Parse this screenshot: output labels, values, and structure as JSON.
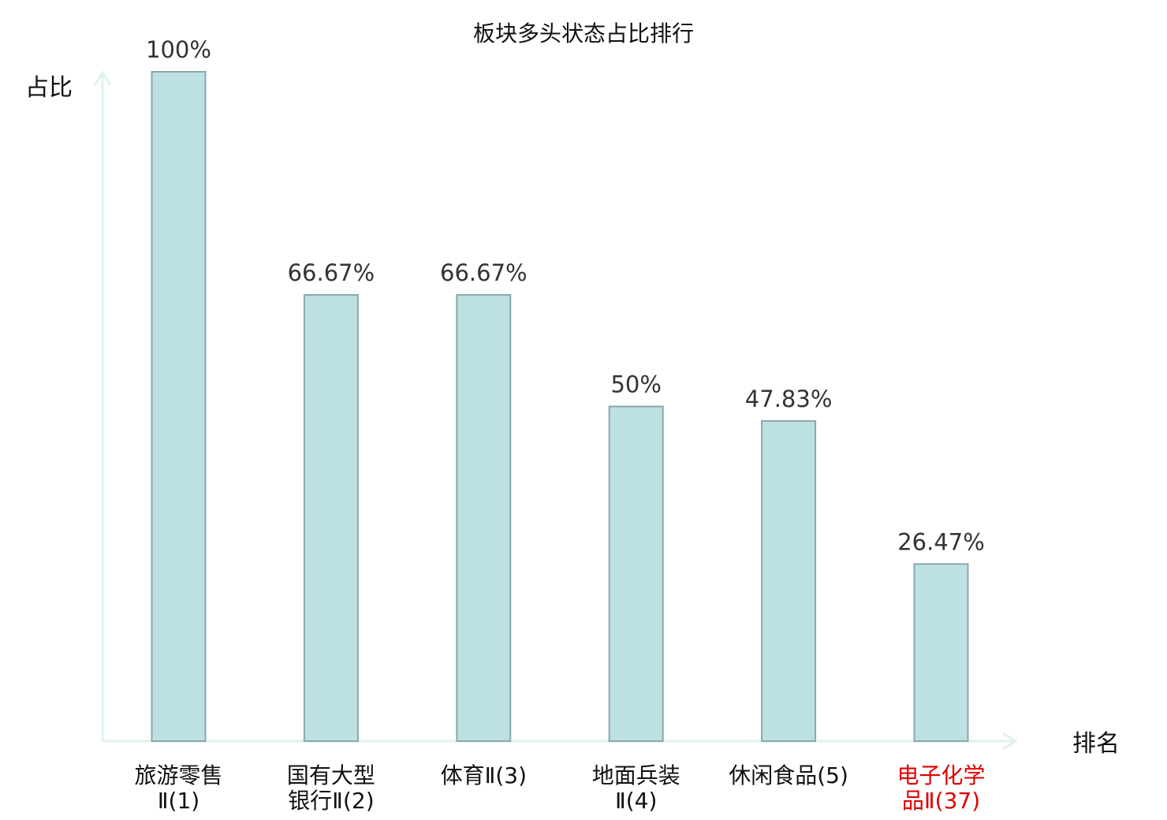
{
  "chart_data": {
    "type": "bar",
    "title": "板块多头状态占比排行",
    "ylabel": "占比",
    "xlabel": "排名",
    "categories": [
      [
        "旅游零售",
        "Ⅱ(1)"
      ],
      [
        "国有大型",
        "银行Ⅱ(2)"
      ],
      [
        "体育Ⅱ(3)"
      ],
      [
        "地面兵装",
        "Ⅱ(4)"
      ],
      [
        "休闲食品(5)"
      ],
      [
        "电子化学",
        "品Ⅱ(37)"
      ]
    ],
    "values": [
      100,
      66.67,
      66.67,
      50,
      47.83,
      26.47
    ],
    "value_labels": [
      "100%",
      "66.67%",
      "66.67%",
      "50%",
      "47.83%",
      "26.47%"
    ],
    "ylim": [
      0,
      100
    ],
    "highlight_index": 5,
    "grid": false,
    "colors": {
      "bar_fill": "#bde0e3",
      "bar_stroke": "#8aa8ab",
      "axis": "#dff2ef",
      "highlight_text": "#e00000"
    }
  }
}
